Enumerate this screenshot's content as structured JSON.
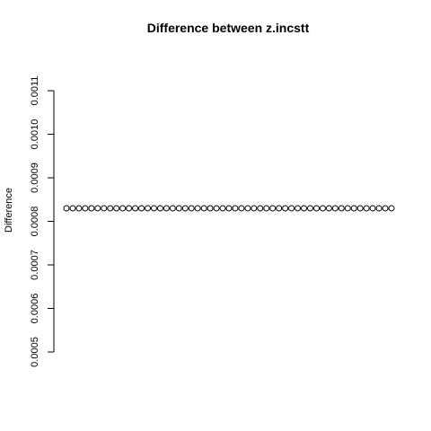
{
  "chart_data": {
    "type": "scatter",
    "title": "Difference between z.incstt",
    "xlabel": "",
    "ylabel": "Difference",
    "ylim": [
      0.0005,
      0.0011
    ],
    "y_ticks": [
      "0.0005",
      "0.0006",
      "0.0007",
      "0.0008",
      "0.0009",
      "0.0010",
      "0.0011"
    ],
    "x_axis_shown": false,
    "grid": false,
    "marker": "open-circle",
    "series": [
      {
        "values": [
          0.00083,
          0.00083,
          0.00083,
          0.00083,
          0.00083,
          0.00083,
          0.00083,
          0.00083,
          0.00083,
          0.00083,
          0.00083,
          0.00083,
          0.00083,
          0.00083,
          0.00083,
          0.00083,
          0.00083,
          0.00083,
          0.00083,
          0.00083,
          0.00083,
          0.00083,
          0.00083,
          0.00083,
          0.00083,
          0.00083,
          0.00083,
          0.00083,
          0.00083,
          0.00083,
          0.00083,
          0.00083,
          0.00083,
          0.00083,
          0.00083,
          0.00083,
          0.00083,
          0.00083,
          0.00083,
          0.00083,
          0.00083,
          0.00083,
          0.00083,
          0.00083,
          0.00083,
          0.00083,
          0.00083,
          0.00083,
          0.00083,
          0.00083,
          0.00083,
          0.00083,
          0.00083
        ]
      }
    ]
  }
}
